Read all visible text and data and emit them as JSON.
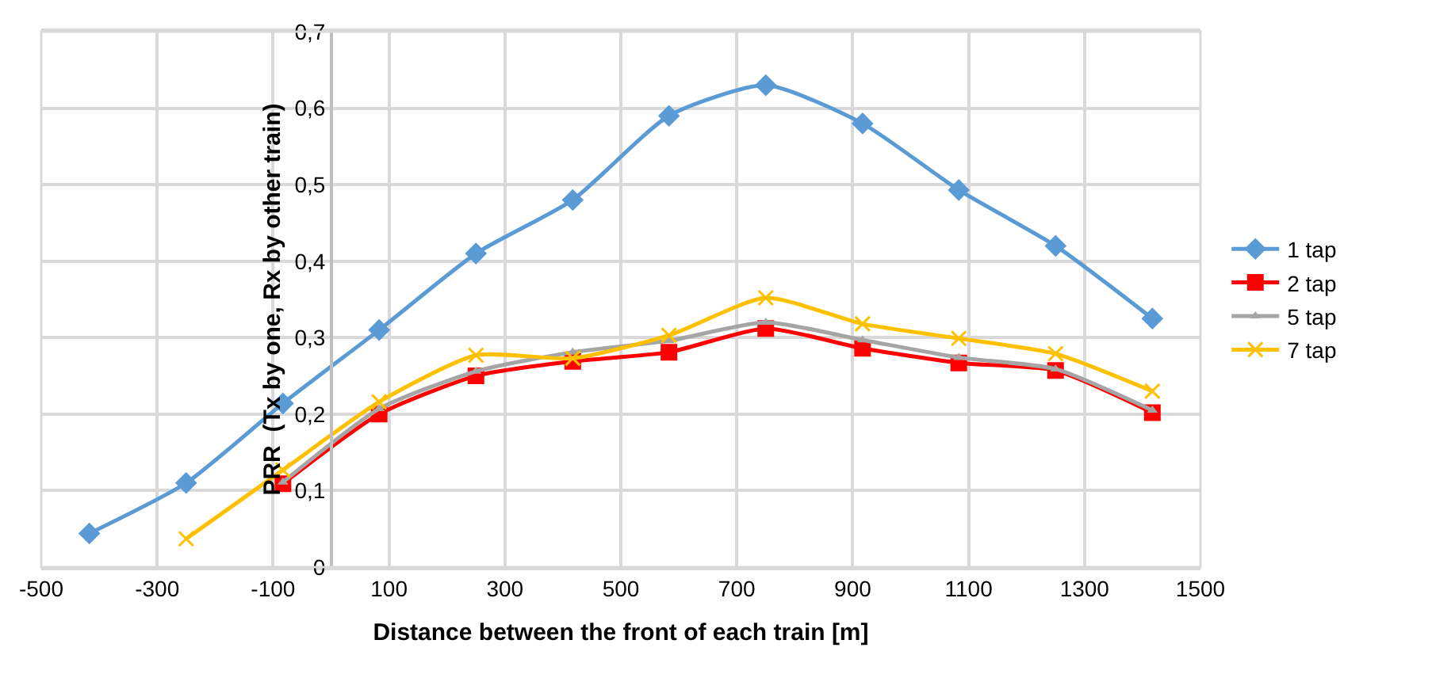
{
  "chart_data": {
    "type": "line",
    "xlabel": "Distance between the front of each train [m]",
    "ylabel": "PRR  (Tx by one, Rx by other train)",
    "x": [
      -417,
      -250,
      -83,
      83,
      250,
      417,
      583,
      750,
      917,
      1083,
      1250,
      1417
    ],
    "series": [
      {
        "name": "1 tap",
        "color": "#5b9bd5",
        "marker": "diamond",
        "values": [
          0.044,
          0.11,
          0.214,
          0.31,
          0.41,
          0.48,
          0.59,
          0.63,
          0.58,
          0.493,
          0.42,
          0.325
        ]
      },
      {
        "name": "2 tap",
        "color": "#ff0000",
        "marker": "square",
        "values": [
          null,
          null,
          0.109,
          0.2,
          0.25,
          0.269,
          0.281,
          0.312,
          0.286,
          0.267,
          0.257,
          0.202
        ]
      },
      {
        "name": "5 tap",
        "color": "#a5a5a5",
        "marker": "triangle",
        "values": [
          null,
          null,
          0.111,
          0.207,
          0.256,
          0.281,
          0.296,
          0.32,
          0.297,
          0.274,
          0.259,
          0.205
        ]
      },
      {
        "name": "7 tap",
        "color": "#ffc000",
        "marker": "cross",
        "values": [
          null,
          0.037,
          0.127,
          0.216,
          0.277,
          0.273,
          0.303,
          0.352,
          0.318,
          0.299,
          0.279,
          0.23
        ]
      }
    ],
    "xlim": [
      -500,
      1500
    ],
    "xticks": [
      -500,
      -300,
      -100,
      100,
      300,
      500,
      700,
      900,
      1100,
      1300,
      1500
    ],
    "ylim": [
      0,
      0.7
    ],
    "yticks": [
      0,
      {
        "value": 0.1,
        "label": "0,1"
      },
      {
        "value": 0.2,
        "label": "0,2"
      },
      {
        "value": 0.3,
        "label": "0,3"
      },
      {
        "value": 0.4,
        "label": "0,4"
      },
      {
        "value": 0.5,
        "label": "0,5"
      },
      {
        "value": 0.6,
        "label": "0,6"
      },
      {
        "value": 0.7,
        "label": "0,7"
      }
    ],
    "grid": true,
    "legend": "right",
    "line_style": "solid"
  }
}
